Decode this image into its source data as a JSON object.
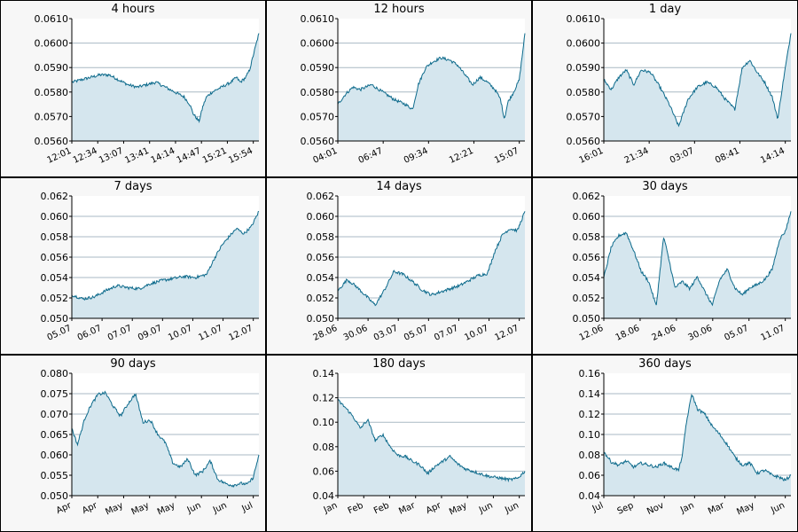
{
  "colors": {
    "line": "#0e6b8c",
    "fill": "#d5e6ee",
    "grid": "#a9b9c4",
    "panel_bg": "#f7f7f7",
    "plot_bg": "#ffffff",
    "border": "#000000"
  },
  "chart_data": [
    {
      "type": "area",
      "title": "4 hours",
      "ylim": [
        0.056,
        0.061
      ],
      "yticks": [
        "0.0560",
        "0.0570",
        "0.0580",
        "0.0590",
        "0.0600",
        "0.0610"
      ],
      "xticks": [
        "12:01",
        "12:34",
        "13:07",
        "13:41",
        "14:14",
        "14:47",
        "15:21",
        "15:54"
      ],
      "x": [
        0,
        0.05,
        0.1,
        0.15,
        0.2,
        0.25,
        0.3,
        0.35,
        0.4,
        0.45,
        0.5,
        0.55,
        0.6,
        0.63,
        0.65,
        0.68,
        0.7,
        0.72,
        0.75,
        0.8,
        0.85,
        0.88,
        0.9,
        0.93,
        0.95,
        0.97,
        1.0
      ],
      "values": [
        0.0584,
        0.0585,
        0.0586,
        0.0587,
        0.0587,
        0.0585,
        0.0583,
        0.0582,
        0.0583,
        0.0584,
        0.0582,
        0.058,
        0.0578,
        0.0575,
        0.0571,
        0.0568,
        0.0574,
        0.0578,
        0.058,
        0.0582,
        0.0584,
        0.0586,
        0.0584,
        0.0586,
        0.0589,
        0.0595,
        0.0604
      ]
    },
    {
      "type": "area",
      "title": "12 hours",
      "ylim": [
        0.056,
        0.061
      ],
      "yticks": [
        "0.0560",
        "0.0570",
        "0.0580",
        "0.0590",
        "0.0600",
        "0.0610"
      ],
      "xticks": [
        "04:01",
        "06:47",
        "09:34",
        "12:21",
        "15:07"
      ],
      "x": [
        0,
        0.04,
        0.08,
        0.12,
        0.18,
        0.24,
        0.3,
        0.36,
        0.4,
        0.43,
        0.47,
        0.5,
        0.55,
        0.6,
        0.64,
        0.68,
        0.72,
        0.76,
        0.8,
        0.84,
        0.87,
        0.89,
        0.91,
        0.94,
        0.97,
        1.0
      ],
      "values": [
        0.0575,
        0.0579,
        0.0582,
        0.0581,
        0.0583,
        0.058,
        0.0577,
        0.0575,
        0.0573,
        0.0583,
        0.059,
        0.0592,
        0.0594,
        0.0593,
        0.0591,
        0.0587,
        0.0583,
        0.0586,
        0.0584,
        0.0581,
        0.0577,
        0.0569,
        0.0576,
        0.058,
        0.0585,
        0.0604
      ]
    },
    {
      "type": "area",
      "title": "1 day",
      "ylim": [
        0.056,
        0.061
      ],
      "yticks": [
        "0.0560",
        "0.0570",
        "0.0580",
        "0.0590",
        "0.0600",
        "0.0610"
      ],
      "xticks": [
        "16:01",
        "21:34",
        "03:07",
        "08:41",
        "14:14"
      ],
      "x": [
        0,
        0.04,
        0.08,
        0.12,
        0.16,
        0.2,
        0.25,
        0.3,
        0.35,
        0.4,
        0.45,
        0.5,
        0.55,
        0.6,
        0.65,
        0.7,
        0.74,
        0.78,
        0.82,
        0.86,
        0.9,
        0.93,
        0.96,
        1.0
      ],
      "values": [
        0.0585,
        0.0581,
        0.0586,
        0.0589,
        0.0583,
        0.0589,
        0.0588,
        0.0582,
        0.0575,
        0.0566,
        0.0577,
        0.0582,
        0.0584,
        0.0582,
        0.0577,
        0.0573,
        0.059,
        0.0593,
        0.0588,
        0.0584,
        0.0578,
        0.0569,
        0.0585,
        0.0604
      ]
    },
    {
      "type": "area",
      "title": "7 days",
      "ylim": [
        0.05,
        0.062
      ],
      "yticks": [
        "0.050",
        "0.052",
        "0.054",
        "0.056",
        "0.058",
        "0.060",
        "0.062"
      ],
      "xticks": [
        "05.07",
        "06.07",
        "07.07",
        "09.07",
        "10.07",
        "11.07",
        "12.07"
      ],
      "x": [
        0,
        0.06,
        0.12,
        0.18,
        0.24,
        0.3,
        0.36,
        0.42,
        0.48,
        0.54,
        0.6,
        0.66,
        0.72,
        0.76,
        0.8,
        0.84,
        0.88,
        0.92,
        0.96,
        1.0
      ],
      "values": [
        0.0523,
        0.0519,
        0.0521,
        0.0527,
        0.0532,
        0.053,
        0.0529,
        0.0534,
        0.0537,
        0.0539,
        0.0541,
        0.054,
        0.0543,
        0.0558,
        0.0571,
        0.058,
        0.0588,
        0.0583,
        0.059,
        0.0605
      ]
    },
    {
      "type": "area",
      "title": "14 days",
      "ylim": [
        0.05,
        0.062
      ],
      "yticks": [
        "0.050",
        "0.052",
        "0.054",
        "0.056",
        "0.058",
        "0.060",
        "0.062"
      ],
      "xticks": [
        "28.06",
        "30.06",
        "03.07",
        "05.07",
        "07.07",
        "10.07",
        "12.07"
      ],
      "x": [
        0,
        0.05,
        0.1,
        0.15,
        0.2,
        0.25,
        0.3,
        0.35,
        0.4,
        0.45,
        0.5,
        0.55,
        0.6,
        0.65,
        0.7,
        0.75,
        0.8,
        0.84,
        0.88,
        0.92,
        0.96,
        1.0
      ],
      "values": [
        0.0527,
        0.0538,
        0.0531,
        0.0522,
        0.0513,
        0.0528,
        0.0546,
        0.0543,
        0.0536,
        0.0528,
        0.0523,
        0.0526,
        0.0529,
        0.0532,
        0.0537,
        0.0542,
        0.0544,
        0.0566,
        0.0582,
        0.0588,
        0.0586,
        0.0605
      ]
    },
    {
      "type": "area",
      "title": "30 days",
      "ylim": [
        0.05,
        0.062
      ],
      "yticks": [
        "0.050",
        "0.052",
        "0.054",
        "0.056",
        "0.058",
        "0.060",
        "0.062"
      ],
      "xticks": [
        "12.06",
        "18.06",
        "24.06",
        "30.06",
        "05.07",
        "11.07"
      ],
      "x": [
        0,
        0.04,
        0.08,
        0.12,
        0.16,
        0.2,
        0.24,
        0.28,
        0.32,
        0.35,
        0.38,
        0.42,
        0.46,
        0.5,
        0.54,
        0.58,
        0.62,
        0.66,
        0.7,
        0.74,
        0.78,
        0.82,
        0.86,
        0.9,
        0.94,
        0.97,
        1.0
      ],
      "values": [
        0.054,
        0.057,
        0.0581,
        0.0584,
        0.0566,
        0.0546,
        0.0536,
        0.0512,
        0.058,
        0.0556,
        0.053,
        0.0536,
        0.0529,
        0.0541,
        0.0526,
        0.0513,
        0.0538,
        0.0548,
        0.053,
        0.0523,
        0.053,
        0.0533,
        0.0538,
        0.0548,
        0.0578,
        0.0585,
        0.0605
      ]
    },
    {
      "type": "area",
      "title": "90 days",
      "ylim": [
        0.05,
        0.08
      ],
      "yticks": [
        "0.050",
        "0.055",
        "0.060",
        "0.065",
        "0.070",
        "0.075",
        "0.080"
      ],
      "xticks": [
        "Apr",
        "Apr",
        "May",
        "May",
        "May",
        "Jun",
        "Jun",
        "Jul"
      ],
      "x": [
        0,
        0.03,
        0.07,
        0.1,
        0.14,
        0.18,
        0.22,
        0.26,
        0.3,
        0.34,
        0.38,
        0.42,
        0.46,
        0.5,
        0.54,
        0.58,
        0.62,
        0.66,
        0.7,
        0.74,
        0.78,
        0.82,
        0.86,
        0.9,
        0.94,
        0.97,
        1.0
      ],
      "values": [
        0.0665,
        0.0625,
        0.069,
        0.072,
        0.0748,
        0.0752,
        0.072,
        0.0695,
        0.0725,
        0.075,
        0.068,
        0.0685,
        0.065,
        0.063,
        0.058,
        0.057,
        0.059,
        0.055,
        0.056,
        0.0585,
        0.054,
        0.053,
        0.0525,
        0.053,
        0.0528,
        0.0545,
        0.06
      ]
    },
    {
      "type": "area",
      "title": "180 days",
      "ylim": [
        0.04,
        0.14
      ],
      "yticks": [
        "0.04",
        "0.06",
        "0.08",
        "0.10",
        "0.12",
        "0.14"
      ],
      "xticks": [
        "Jan",
        "Feb",
        "Feb",
        "Mar",
        "Apr",
        "May",
        "Jun",
        "Jun"
      ],
      "x": [
        0,
        0.04,
        0.08,
        0.12,
        0.16,
        0.2,
        0.24,
        0.28,
        0.32,
        0.36,
        0.4,
        0.44,
        0.48,
        0.52,
        0.56,
        0.6,
        0.64,
        0.68,
        0.72,
        0.76,
        0.8,
        0.84,
        0.88,
        0.92,
        0.96,
        1.0
      ],
      "values": [
        0.118,
        0.112,
        0.105,
        0.095,
        0.102,
        0.085,
        0.09,
        0.08,
        0.073,
        0.072,
        0.068,
        0.065,
        0.058,
        0.064,
        0.068,
        0.072,
        0.066,
        0.062,
        0.06,
        0.058,
        0.056,
        0.055,
        0.054,
        0.053,
        0.054,
        0.06
      ]
    },
    {
      "type": "area",
      "title": "360 days",
      "ylim": [
        0.04,
        0.16
      ],
      "yticks": [
        "0.04",
        "0.06",
        "0.08",
        "0.10",
        "0.12",
        "0.14",
        "0.16"
      ],
      "xticks": [
        "Jul",
        "Sep",
        "Nov",
        "Jan",
        "Mar",
        "May",
        "Jun"
      ],
      "x": [
        0,
        0.04,
        0.08,
        0.12,
        0.16,
        0.2,
        0.24,
        0.28,
        0.32,
        0.36,
        0.4,
        0.42,
        0.44,
        0.47,
        0.5,
        0.54,
        0.58,
        0.62,
        0.66,
        0.7,
        0.74,
        0.78,
        0.82,
        0.86,
        0.9,
        0.94,
        0.97,
        1.0
      ],
      "values": [
        0.083,
        0.073,
        0.07,
        0.074,
        0.068,
        0.072,
        0.07,
        0.068,
        0.072,
        0.068,
        0.065,
        0.08,
        0.11,
        0.14,
        0.125,
        0.12,
        0.108,
        0.1,
        0.09,
        0.078,
        0.07,
        0.072,
        0.062,
        0.065,
        0.06,
        0.058,
        0.055,
        0.06
      ]
    }
  ]
}
